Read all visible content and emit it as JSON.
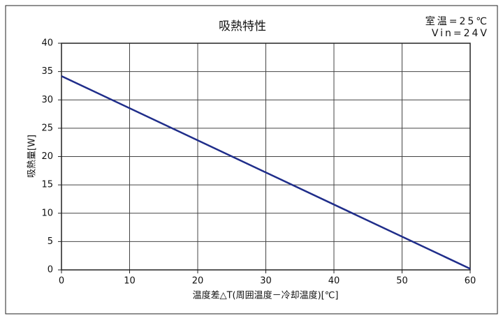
{
  "chart_data": {
    "type": "line",
    "title": "吸熱特性",
    "annotations": [
      "室温=25℃",
      "Vin=24V"
    ],
    "x_label": "温度差△T(周囲温度－冷却温度)[℃]",
    "y_label": "吸熱量[W]",
    "x": [
      0,
      60
    ],
    "series": [
      {
        "name": "吸熱量",
        "color": "#1f2d8a",
        "values": [
          34.2,
          0.2
        ]
      }
    ],
    "xlim": [
      0,
      60
    ],
    "xticks": [
      0,
      10,
      20,
      30,
      40,
      50,
      60
    ],
    "ylim": [
      0,
      40
    ],
    "yticks": [
      0,
      5,
      10,
      15,
      20,
      25,
      30,
      35,
      40
    ],
    "grid": true
  }
}
